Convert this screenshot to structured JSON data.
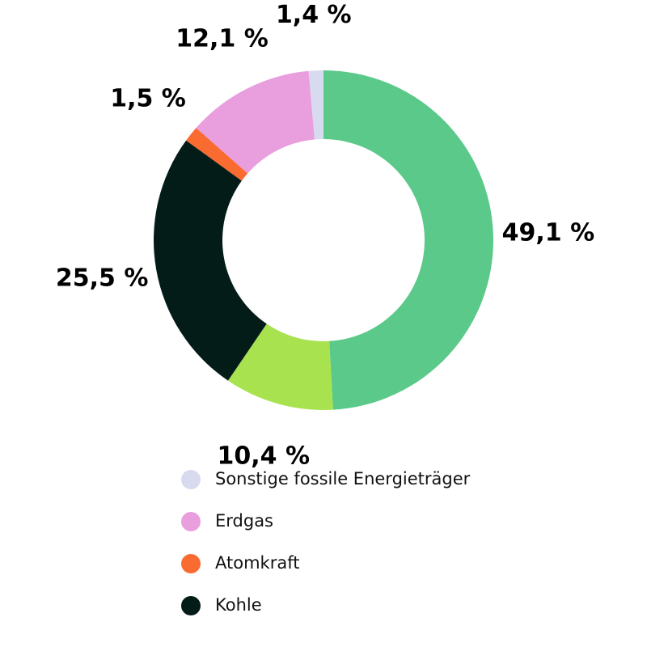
{
  "chart_data": {
    "type": "donut",
    "categories": [
      null,
      null,
      "Kohle",
      "Atomkraft",
      "Erdgas",
      "Sonstige fossile Energieträger"
    ],
    "values": [
      49.1,
      10.4,
      25.5,
      1.5,
      12.1,
      1.4
    ],
    "value_labels": [
      "49,1 %",
      "10,4 %",
      "25,5 %",
      "1,5 %",
      "12,1 %",
      "1,4 %"
    ],
    "colors": [
      "#5ac98a",
      "#a8e34f",
      "#041c17",
      "#fa6b32",
      "#e99ede",
      "#d8daf0"
    ]
  }
}
